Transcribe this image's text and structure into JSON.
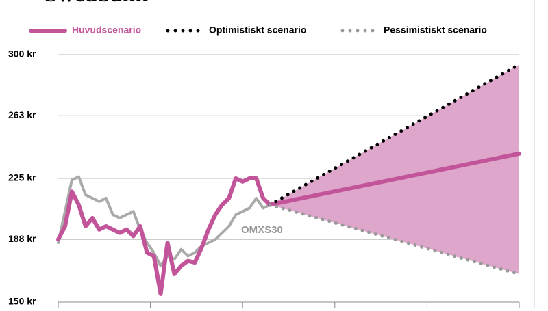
{
  "chart_data": {
    "type": "line",
    "title": "Swedbank",
    "x": [
      0,
      2,
      4,
      6,
      8,
      10,
      12,
      14,
      16,
      18,
      20,
      22,
      24,
      26,
      28,
      30,
      32,
      34,
      36,
      38,
      40,
      42,
      44,
      46,
      48,
      50,
      52,
      54,
      56,
      58,
      60,
      62,
      135
    ],
    "xlim": [
      0,
      135
    ],
    "xticks": [
      0,
      27,
      54,
      81,
      108,
      135
    ],
    "ylim": [
      150,
      300
    ],
    "yticks": [
      {
        "value": 150,
        "label": "150 kr"
      },
      {
        "value": 188,
        "label": "188 kr"
      },
      {
        "value": 225,
        "label": "225 kr"
      },
      {
        "value": 263,
        "label": "263 kr"
      },
      {
        "value": 300,
        "label": "300 kr"
      }
    ],
    "grid": true,
    "series": [
      {
        "name": "Huvudscenario",
        "color": "#c2549a",
        "style": "solid",
        "values": [
          188,
          196,
          217,
          209,
          196,
          201,
          194,
          196,
          194,
          192,
          194,
          190,
          196,
          180,
          178,
          155,
          186,
          167,
          172,
          175,
          174,
          183,
          194,
          203,
          209,
          213,
          225,
          223,
          225,
          225,
          213,
          209,
          240
        ]
      },
      {
        "name": "Optimistiskt scenario",
        "color": "#000000",
        "style": "dotted",
        "values": [
          null,
          null,
          null,
          null,
          null,
          null,
          null,
          null,
          null,
          null,
          null,
          null,
          null,
          null,
          null,
          null,
          null,
          null,
          null,
          null,
          null,
          null,
          null,
          null,
          null,
          null,
          null,
          null,
          null,
          null,
          null,
          209,
          294
        ]
      },
      {
        "name": "Pessimistiskt scenario",
        "color": "#999999",
        "style": "dotted",
        "values": [
          null,
          null,
          null,
          null,
          null,
          null,
          null,
          null,
          null,
          null,
          null,
          null,
          null,
          null,
          null,
          null,
          null,
          null,
          null,
          null,
          null,
          null,
          null,
          null,
          null,
          null,
          null,
          null,
          null,
          null,
          null,
          209,
          167
        ]
      },
      {
        "name": "OMXS30",
        "color": "#aaaaaa",
        "style": "solid",
        "values": [
          186,
          205,
          224,
          226,
          215,
          213,
          211,
          213,
          203,
          201,
          203,
          205,
          194,
          186,
          180,
          172,
          178,
          176,
          182,
          178,
          180,
          184,
          186,
          188,
          192,
          196,
          203,
          205,
          207,
          213,
          207,
          209,
          null
        ]
      }
    ],
    "range_color": "#dfa6cb"
  }
}
